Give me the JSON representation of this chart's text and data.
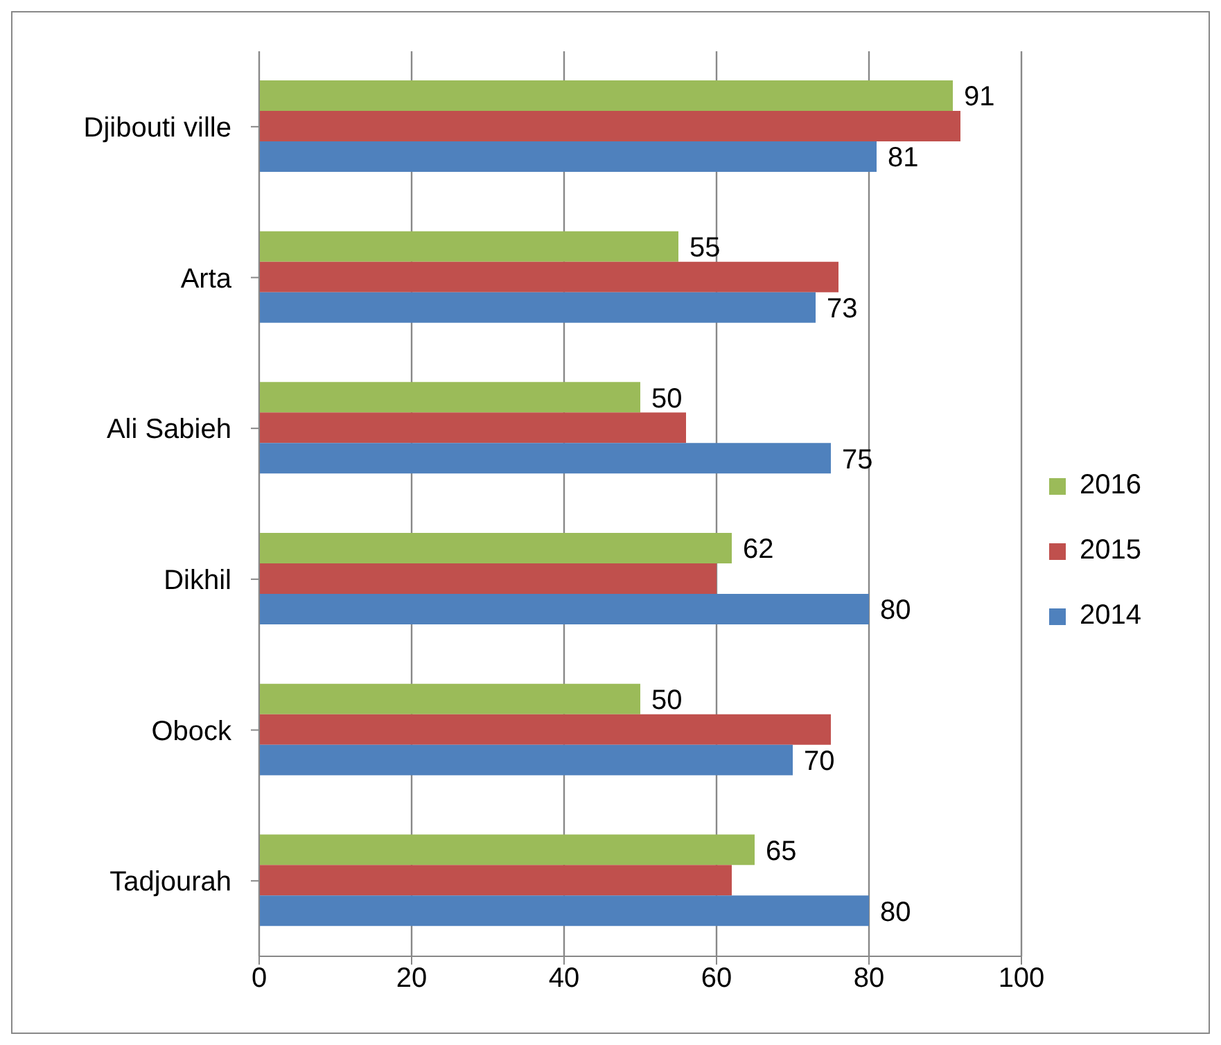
{
  "chart_data": {
    "type": "bar",
    "orientation": "horizontal",
    "categories": [
      "Djibouti ville",
      "Arta",
      "Ali Sabieh",
      "Dikhil",
      "Obock",
      "Tadjourah"
    ],
    "series": [
      {
        "name": "2016",
        "color": "#9bbb59",
        "values": [
          91,
          55,
          50,
          62,
          50,
          65
        ],
        "value_labels": [
          "91",
          "55",
          "50",
          "62",
          "50",
          "65"
        ]
      },
      {
        "name": "2015",
        "color": "#c0504d",
        "values": [
          92,
          76,
          56,
          60,
          75,
          62
        ]
      },
      {
        "name": "2014",
        "color": "#4f81bd",
        "values": [
          81,
          73,
          75,
          80,
          70,
          80
        ],
        "value_labels": [
          "81",
          "73",
          "75",
          "80",
          "70",
          "80"
        ]
      }
    ],
    "xlim": [
      0,
      100
    ],
    "xticks": [
      0,
      20,
      40,
      60,
      80,
      100
    ],
    "grid": "x",
    "legend": "right"
  }
}
